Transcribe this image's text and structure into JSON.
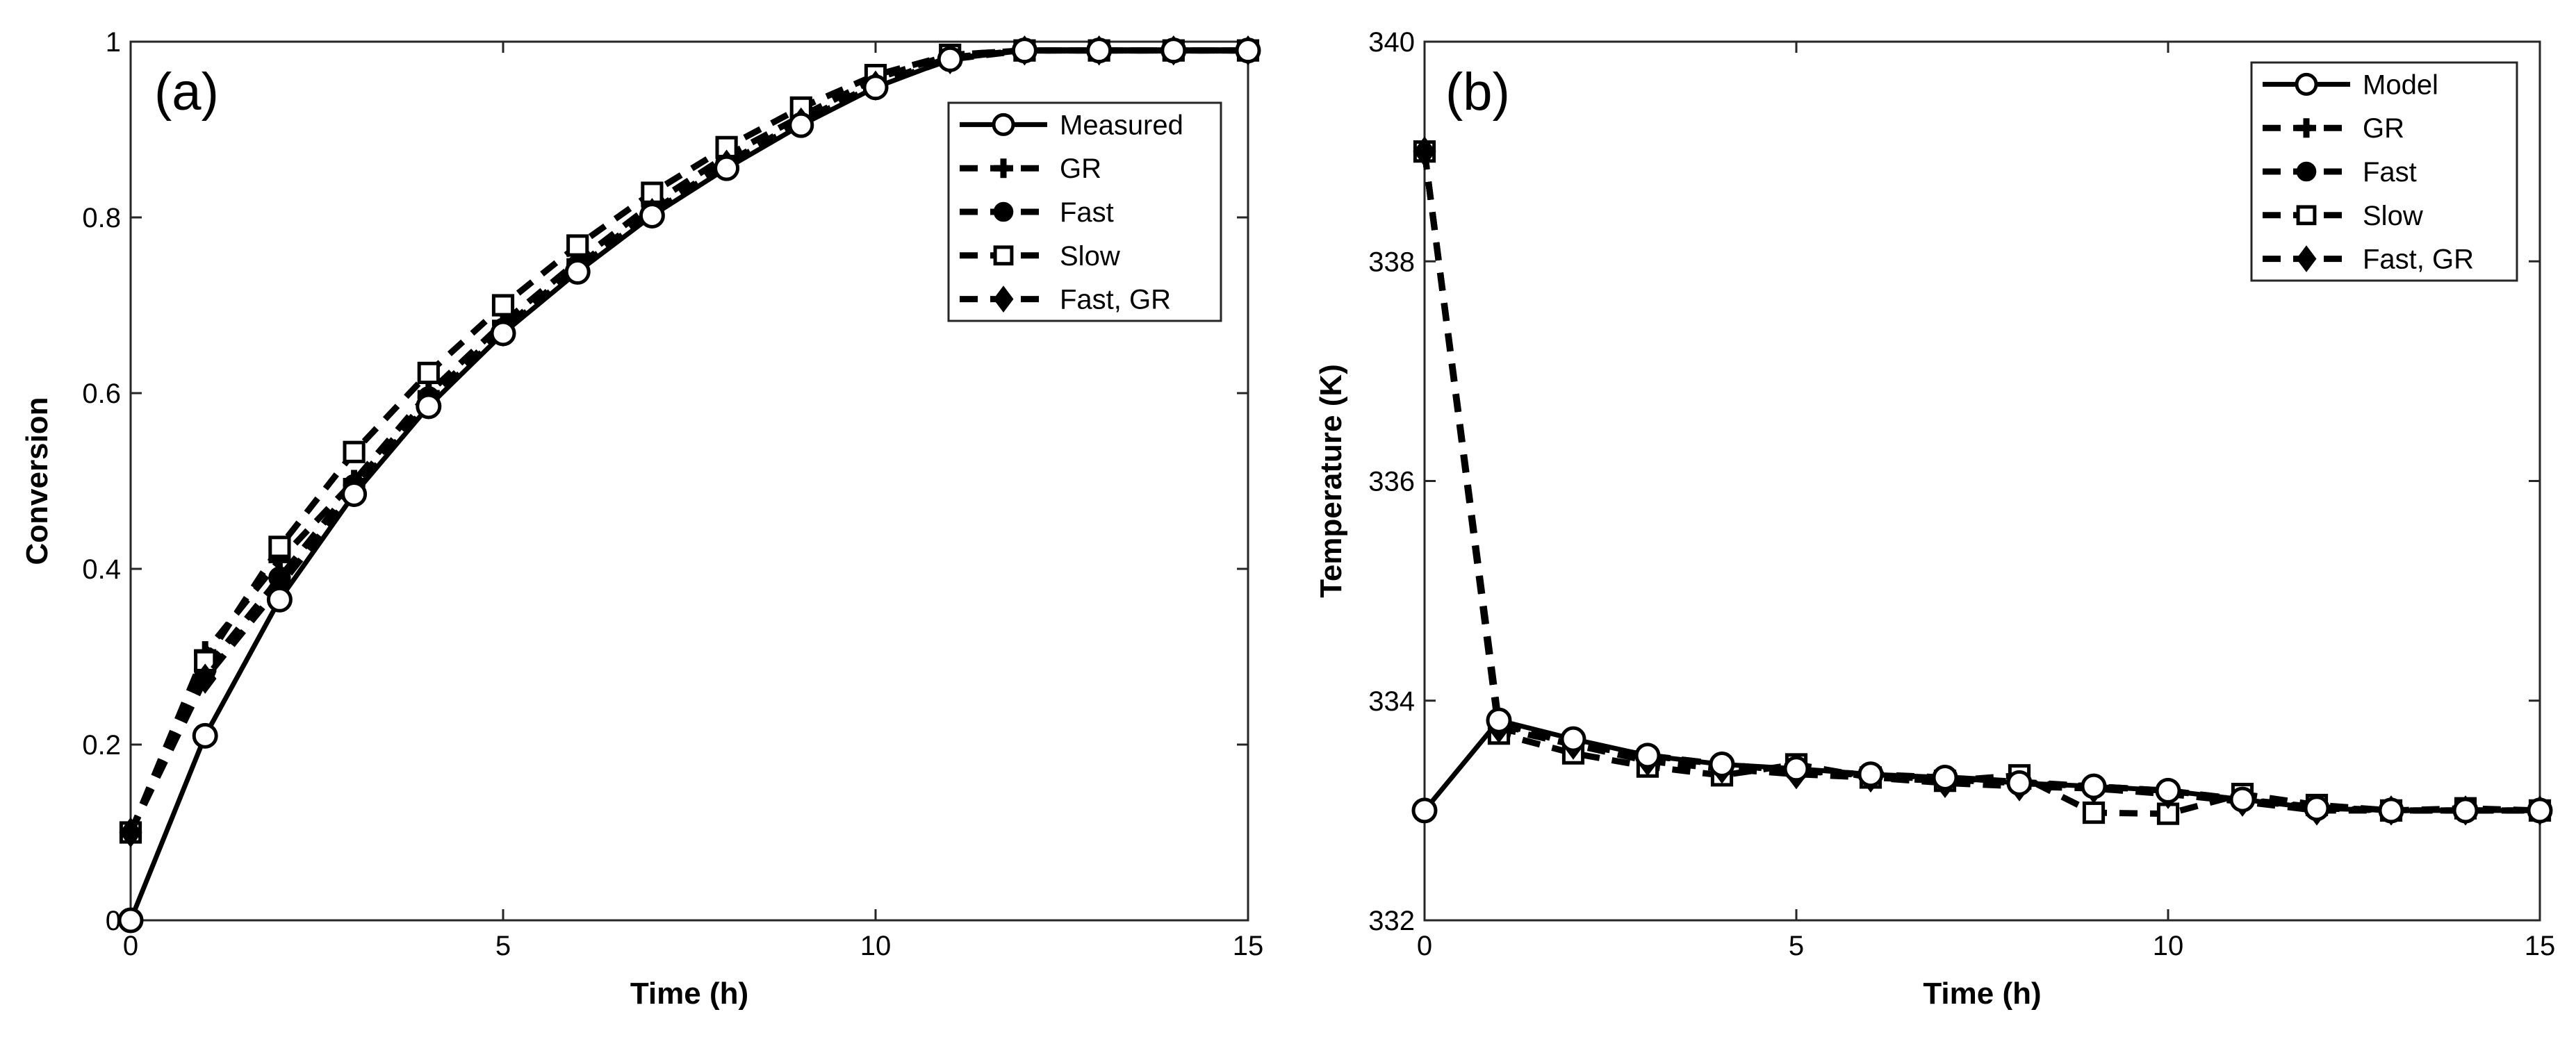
{
  "chart_data": [
    {
      "type": "line",
      "panel_label": "(a)",
      "xlabel": "Time (h)",
      "ylabel": "Conversion",
      "xlim": [
        0,
        15
      ],
      "ylim": [
        0,
        1
      ],
      "xticks": [
        0,
        5,
        10,
        15
      ],
      "yticks": [
        0,
        0.2,
        0.4,
        0.6,
        0.8,
        1
      ],
      "ytick_labels": [
        "0",
        "0.2",
        "0.4",
        "0.6",
        "0.8",
        "1"
      ],
      "legend_position": "top-right",
      "series": [
        {
          "name": "Measured",
          "style": "solid",
          "marker": "circle",
          "x": [
            0,
            1,
            2,
            3,
            4,
            5,
            6,
            7,
            8,
            9,
            10,
            11,
            12,
            13,
            14,
            15
          ],
          "values": [
            0,
            0.21,
            0.365,
            0.485,
            0.585,
            0.668,
            0.738,
            0.802,
            0.856,
            0.905,
            0.948,
            0.98,
            0.99,
            0.99,
            0.99,
            0.99
          ]
        },
        {
          "name": "GR",
          "style": "dashed",
          "marker": "plus",
          "x": [
            0,
            1,
            2,
            3,
            4,
            5,
            6,
            7,
            8,
            9,
            10,
            11,
            12,
            13,
            14,
            15
          ],
          "values": [
            0.1,
            0.305,
            0.41,
            0.5,
            0.6,
            0.68,
            0.75,
            0.815,
            0.87,
            0.915,
            0.958,
            0.985,
            0.99,
            0.99,
            0.99,
            0.99
          ]
        },
        {
          "name": "Fast",
          "style": "dashed",
          "marker": "dot",
          "x": [
            0,
            1,
            2,
            3,
            4,
            5,
            6,
            7,
            8,
            9,
            10,
            11,
            12,
            13,
            14,
            15
          ],
          "values": [
            0.1,
            0.285,
            0.39,
            0.495,
            0.595,
            0.673,
            0.745,
            0.807,
            0.862,
            0.91,
            0.952,
            0.982,
            0.99,
            0.99,
            0.99,
            0.99
          ]
        },
        {
          "name": "Slow",
          "style": "dashed",
          "marker": "square",
          "x": [
            0,
            1,
            2,
            3,
            4,
            5,
            6,
            7,
            8,
            9,
            10,
            11,
            12,
            13,
            14,
            15
          ],
          "values": [
            0.1,
            0.295,
            0.425,
            0.533,
            0.623,
            0.7,
            0.768,
            0.828,
            0.88,
            0.925,
            0.962,
            0.985,
            0.99,
            0.99,
            0.99,
            0.99
          ]
        },
        {
          "name": "Fast, GR",
          "style": "dashed",
          "marker": "diamond",
          "x": [
            0,
            1,
            2,
            3,
            4,
            5,
            6,
            7,
            8,
            9,
            10,
            11,
            12,
            13,
            14,
            15
          ],
          "values": [
            0.1,
            0.275,
            0.38,
            0.488,
            0.588,
            0.67,
            0.742,
            0.805,
            0.86,
            0.908,
            0.95,
            0.98,
            0.99,
            0.99,
            0.99,
            0.99
          ]
        }
      ]
    },
    {
      "type": "line",
      "panel_label": "(b)",
      "xlabel": "Time (h)",
      "ylabel": "Temperature (K)",
      "xlim": [
        0,
        15
      ],
      "ylim": [
        332,
        340
      ],
      "xticks": [
        0,
        5,
        10,
        15
      ],
      "yticks": [
        332,
        334,
        336,
        338,
        340
      ],
      "ytick_labels": [
        "332",
        "334",
        "336",
        "338",
        "340"
      ],
      "legend_position": "top-right",
      "series": [
        {
          "name": "Model",
          "style": "solid",
          "marker": "circle",
          "x": [
            0,
            1,
            2,
            3,
            4,
            5,
            6,
            7,
            8,
            9,
            10,
            11,
            12,
            13,
            14,
            15
          ],
          "values": [
            333,
            333.82,
            333.65,
            333.5,
            333.42,
            333.38,
            333.33,
            333.3,
            333.25,
            333.22,
            333.18,
            333.1,
            333.02,
            333,
            333,
            333
          ]
        },
        {
          "name": "GR",
          "style": "dashed",
          "marker": "plus",
          "x": [
            0,
            1,
            2,
            3,
            4,
            5,
            6,
            7,
            8,
            9,
            10,
            11,
            12,
            13,
            14,
            15
          ],
          "values": [
            339,
            333.8,
            333.6,
            333.5,
            333.42,
            333.36,
            333.33,
            333.3,
            333.26,
            333.22,
            333.18,
            333.1,
            333.03,
            333,
            333,
            333
          ]
        },
        {
          "name": "Fast",
          "style": "dashed",
          "marker": "dot",
          "x": [
            0,
            1,
            2,
            3,
            4,
            5,
            6,
            7,
            8,
            9,
            10,
            11,
            12,
            13,
            14,
            15
          ],
          "values": [
            339,
            333.78,
            333.62,
            333.5,
            333.42,
            333.36,
            333.32,
            333.28,
            333.25,
            333.22,
            333.18,
            333.1,
            333.02,
            333,
            333,
            333
          ]
        },
        {
          "name": "Slow",
          "style": "dashed",
          "marker": "square",
          "x": [
            0,
            1,
            2,
            3,
            4,
            5,
            6,
            7,
            8,
            9,
            10,
            11,
            12,
            13,
            14,
            15
          ],
          "values": [
            339,
            333.7,
            333.52,
            333.4,
            333.32,
            333.42,
            333.3,
            333.27,
            333.32,
            332.98,
            332.97,
            333.15,
            333.05,
            333,
            333.02,
            333
          ]
        },
        {
          "name": "Fast, GR",
          "style": "dashed",
          "marker": "diamond",
          "x": [
            0,
            1,
            2,
            3,
            4,
            5,
            6,
            7,
            8,
            9,
            10,
            11,
            12,
            13,
            14,
            15
          ],
          "values": [
            339,
            333.75,
            333.6,
            333.45,
            333.38,
            333.33,
            333.3,
            333.25,
            333.22,
            333.2,
            333.15,
            333.08,
            333,
            333,
            333,
            333
          ]
        }
      ]
    }
  ]
}
